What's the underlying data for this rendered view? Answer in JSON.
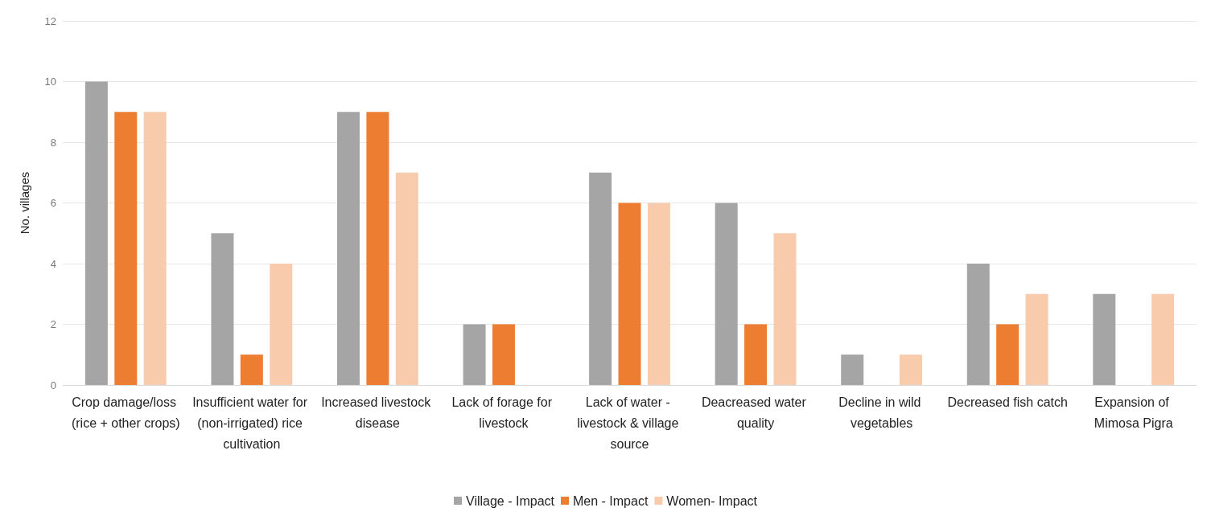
{
  "chart_data": {
    "type": "bar",
    "ylabel": "No. villages",
    "categories": [
      "Crop damage/loss (rice + other crops)",
      "Insufficient water for (non-irrigated) rice cultivation",
      "Increased livestock disease",
      "Lack of forage for livestock",
      "Lack of water - livestock & village source",
      "Deacreased water quality",
      "Decline in wild vegetables",
      "Decreased fish catch",
      "Expansion of Mimosa Pigra"
    ],
    "series": [
      {
        "name": "Village - Impact",
        "color": "#a5a5a5",
        "values": [
          10,
          5,
          9,
          2,
          7,
          6,
          1,
          4,
          3
        ]
      },
      {
        "name": "Men - Impact",
        "color": "#ed7d31",
        "values": [
          9,
          1,
          9,
          2,
          6,
          2,
          0,
          2,
          0
        ]
      },
      {
        "name": "Women- Impact",
        "color": "#f8cbad",
        "values": [
          9,
          4,
          7,
          0,
          6,
          5,
          1,
          3,
          3
        ]
      }
    ],
    "ylim": [
      0,
      12
    ],
    "yticks": [
      0,
      2,
      4,
      6,
      8,
      10,
      12
    ],
    "grid": "y",
    "legend": "bottom"
  }
}
